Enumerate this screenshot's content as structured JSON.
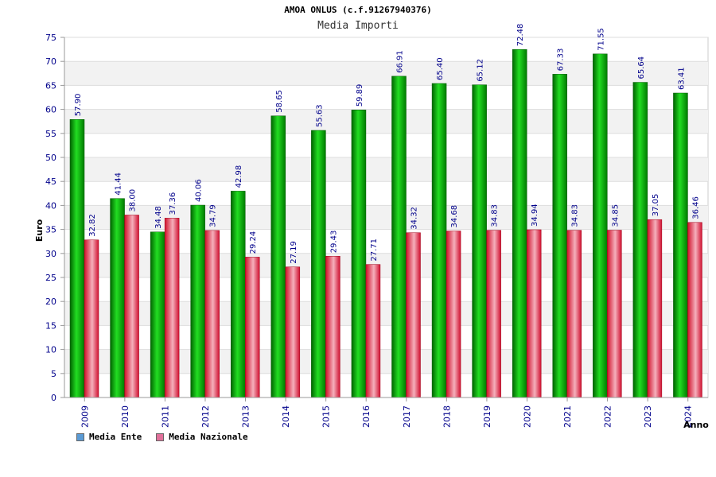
{
  "header": {
    "title": "AMOA ONLUS (c.f.91267940376)",
    "subtitle": "Media Importi"
  },
  "chart_data": {
    "type": "bar",
    "title": "Media Importi",
    "xlabel": "Anno",
    "ylabel": "Euro",
    "ylim": [
      0,
      75
    ],
    "yticks": [
      0,
      5,
      10,
      15,
      20,
      25,
      30,
      35,
      40,
      45,
      50,
      55,
      60,
      65,
      70,
      75
    ],
    "categories": [
      "2009",
      "2010",
      "2011",
      "2012",
      "2013",
      "2014",
      "2015",
      "2016",
      "2017",
      "2018",
      "2019",
      "2020",
      "2021",
      "2022",
      "2023",
      "2024"
    ],
    "series": [
      {
        "name": "Media Ente",
        "color": "#00b400",
        "values": [
          57.9,
          41.44,
          34.48,
          40.06,
          42.98,
          58.65,
          55.63,
          59.89,
          66.91,
          65.4,
          65.12,
          72.48,
          67.33,
          71.55,
          65.64,
          63.41
        ],
        "labels": [
          "57.90",
          "41.44",
          "34.48",
          "40.06",
          "42.98",
          "58.65",
          "55.63",
          "59.89",
          "66.91",
          "65.40",
          "65.12",
          "72.48",
          "67.33",
          "71.55",
          "65.64",
          "63.41"
        ]
      },
      {
        "name": "Media Nazionale",
        "color": "#e0203a",
        "values": [
          32.82,
          38.0,
          37.36,
          34.79,
          29.24,
          27.19,
          29.43,
          27.71,
          34.32,
          34.68,
          34.83,
          34.94,
          34.83,
          34.85,
          37.05,
          36.46
        ],
        "labels": [
          "32.82",
          "38.00",
          "37.36",
          "34.79",
          "29.24",
          "27.19",
          "29.43",
          "27.71",
          "34.32",
          "34.68",
          "34.83",
          "34.94",
          "34.83",
          "34.85",
          "37.05",
          "36.46"
        ]
      }
    ]
  },
  "legend": {
    "items": [
      {
        "label": "Media Ente",
        "color": "#5b9bd5"
      },
      {
        "label": "Media Nazionale",
        "color": "#e0709a"
      }
    ]
  }
}
